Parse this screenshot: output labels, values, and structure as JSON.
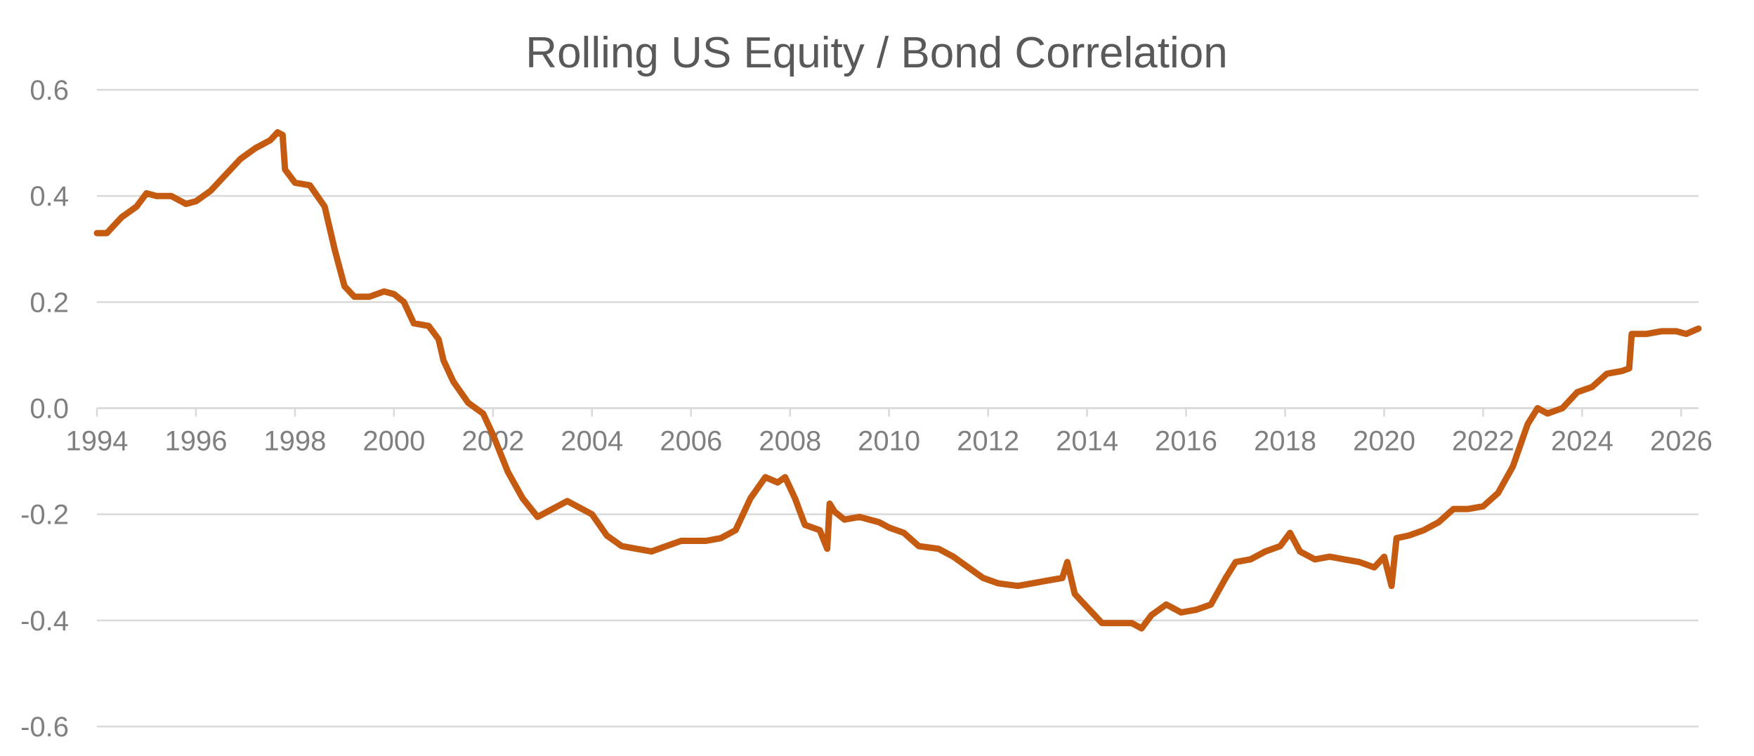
{
  "chart_data": {
    "type": "line",
    "title": "Rolling US Equity / Bond Correlation",
    "xlabel": "",
    "ylabel": "",
    "xlim": [
      1994,
      2026.35
    ],
    "ylim": [
      -0.6,
      0.6
    ],
    "yticks": [
      0.6,
      0.4,
      0.2,
      0.0,
      -0.2,
      -0.4,
      -0.6
    ],
    "ytick_labels": [
      "0.6",
      "0.4",
      "0.2",
      "0.0",
      "-0.2",
      "-0.4",
      "-0.6"
    ],
    "xticks": [
      1994,
      1996,
      1998,
      2000,
      2002,
      2004,
      2006,
      2008,
      2010,
      2012,
      2014,
      2016,
      2018,
      2020,
      2022,
      2024,
      2026
    ],
    "xtick_labels": [
      "1994",
      "1996",
      "1998",
      "2000",
      "2002",
      "2004",
      "2006",
      "2008",
      "2010",
      "2012",
      "2014",
      "2016",
      "2018",
      "2020",
      "2022",
      "2024",
      "2026"
    ],
    "grid": true,
    "legend": "none",
    "colors": {
      "series": "#c55a11",
      "grid": "#d9d9d9",
      "title": "#595959",
      "ticks": "#7f7f7f"
    },
    "series": [
      {
        "x": [
          1994.0,
          1994.2,
          1994.5,
          1994.8,
          1995.0,
          1995.2,
          1995.5,
          1995.8,
          1996.0,
          1996.3,
          1996.6,
          1996.9,
          1997.2,
          1997.5,
          1997.65,
          1997.75,
          1997.8,
          1998.0,
          1998.3,
          1998.6,
          1998.8,
          1999.0,
          1999.2,
          1999.5,
          1999.8,
          2000.0,
          2000.2,
          2000.4,
          2000.7,
          2000.9,
          2001.0,
          2001.2,
          2001.5,
          2001.8,
          2002.0,
          2002.3,
          2002.6,
          2002.9,
          2003.2,
          2003.5,
          2003.8,
          2004.0,
          2004.3,
          2004.6,
          2004.9,
          2005.2,
          2005.5,
          2005.8,
          2006.0,
          2006.3,
          2006.6,
          2006.9,
          2007.2,
          2007.5,
          2007.75,
          2007.9,
          2008.1,
          2008.3,
          2008.6,
          2008.75,
          2008.8,
          2008.9,
          2009.1,
          2009.4,
          2009.8,
          2010.0,
          2010.3,
          2010.6,
          2011.0,
          2011.3,
          2011.6,
          2011.9,
          2012.2,
          2012.6,
          2012.9,
          2013.2,
          2013.5,
          2013.6,
          2013.75,
          2013.9,
          2014.1,
          2014.3,
          2014.6,
          2014.9,
          2015.1,
          2015.3,
          2015.6,
          2015.9,
          2016.2,
          2016.5,
          2016.8,
          2017.0,
          2017.3,
          2017.6,
          2017.9,
          2018.1,
          2018.3,
          2018.6,
          2018.9,
          2019.2,
          2019.5,
          2019.8,
          2020.0,
          2020.15,
          2020.25,
          2020.5,
          2020.8,
          2021.1,
          2021.4,
          2021.7,
          2022.0,
          2022.3,
          2022.6,
          2022.9,
          2023.1,
          2023.3,
          2023.6,
          2023.9,
          2024.2,
          2024.5,
          2024.8,
          2024.95,
          2025.0,
          2025.3,
          2025.6,
          2025.9,
          2026.1,
          2026.35
        ],
        "values": [
          0.33,
          0.33,
          0.36,
          0.38,
          0.405,
          0.4,
          0.4,
          0.385,
          0.39,
          0.41,
          0.44,
          0.47,
          0.49,
          0.505,
          0.52,
          0.515,
          0.45,
          0.425,
          0.42,
          0.38,
          0.3,
          0.23,
          0.21,
          0.21,
          0.22,
          0.215,
          0.2,
          0.16,
          0.155,
          0.13,
          0.09,
          0.05,
          0.01,
          -0.01,
          -0.05,
          -0.12,
          -0.17,
          -0.205,
          -0.19,
          -0.175,
          -0.19,
          -0.2,
          -0.24,
          -0.26,
          -0.265,
          -0.27,
          -0.26,
          -0.25,
          -0.25,
          -0.25,
          -0.245,
          -0.23,
          -0.17,
          -0.13,
          -0.14,
          -0.13,
          -0.17,
          -0.22,
          -0.23,
          -0.265,
          -0.18,
          -0.195,
          -0.21,
          -0.205,
          -0.215,
          -0.225,
          -0.235,
          -0.26,
          -0.265,
          -0.28,
          -0.3,
          -0.32,
          -0.33,
          -0.335,
          -0.33,
          -0.325,
          -0.32,
          -0.29,
          -0.35,
          -0.365,
          -0.385,
          -0.405,
          -0.405,
          -0.405,
          -0.415,
          -0.39,
          -0.37,
          -0.385,
          -0.38,
          -0.37,
          -0.32,
          -0.29,
          -0.285,
          -0.27,
          -0.26,
          -0.235,
          -0.27,
          -0.285,
          -0.28,
          -0.285,
          -0.29,
          -0.3,
          -0.28,
          -0.335,
          -0.245,
          -0.24,
          -0.23,
          -0.215,
          -0.19,
          -0.19,
          -0.185,
          -0.16,
          -0.11,
          -0.03,
          0.0,
          -0.01,
          0.0,
          0.03,
          0.04,
          0.065,
          0.07,
          0.075,
          0.14,
          0.14,
          0.145,
          0.145,
          0.14,
          0.15
        ]
      }
    ]
  }
}
